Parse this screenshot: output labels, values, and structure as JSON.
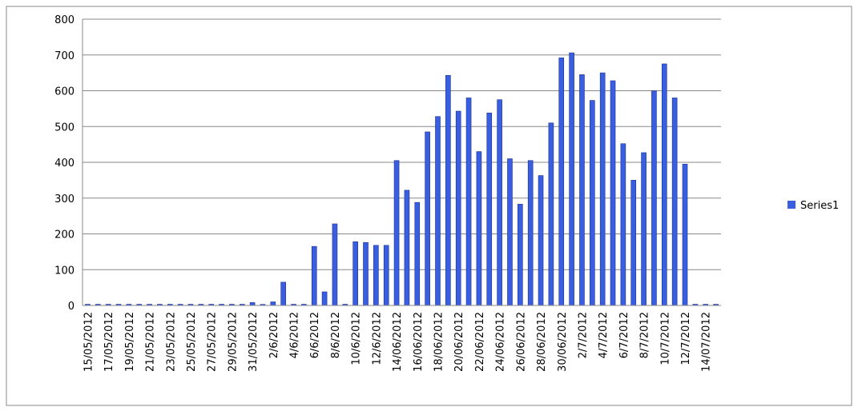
{
  "chart_data": {
    "type": "bar",
    "categories": [
      "15/05/2012",
      null,
      "17/05/2012",
      null,
      "19/05/2012",
      null,
      "21/05/2012",
      null,
      "23/05/2012",
      null,
      "25/05/2012",
      null,
      "27/05/2012",
      null,
      "29/05/2012",
      null,
      "31/05/2012",
      null,
      "2/6/2012",
      null,
      "4/6/2012",
      null,
      "6/6/2012",
      null,
      "8/6/2012",
      null,
      "10/6/2012",
      null,
      "12/6/2012",
      null,
      "14/06/2012",
      null,
      "16/06/2012",
      null,
      "18/06/2012",
      null,
      "20/06/2012",
      null,
      "22/06/2012",
      null,
      "24/06/2012",
      null,
      "26/06/2012",
      null,
      "28/06/2012",
      null,
      "30/06/2012",
      null,
      "2/7/2012",
      null,
      "4/7/2012",
      null,
      "6/7/2012",
      null,
      "8/7/2012",
      null,
      "10/7/2012",
      null,
      "12/7/2012",
      null,
      "14/07/2012",
      null
    ],
    "series": [
      {
        "name": "Series1",
        "color": "#3a5ee0",
        "values": [
          0,
          0,
          0,
          0,
          0,
          0,
          0,
          0,
          0,
          0,
          0,
          0,
          0,
          0,
          0,
          0,
          8,
          3,
          10,
          65,
          0,
          0,
          165,
          38,
          228,
          0,
          178,
          176,
          168,
          168,
          405,
          322,
          288,
          485,
          528,
          643,
          543,
          580,
          430,
          538,
          575,
          410,
          283,
          405,
          363,
          510,
          692,
          706,
          645,
          573,
          650,
          628,
          452,
          350,
          427,
          600,
          675,
          580,
          395,
          0,
          0,
          0
        ]
      }
    ],
    "ylim": [
      0,
      800
    ],
    "yticks": [
      0,
      100,
      200,
      300,
      400,
      500,
      600,
      700,
      800
    ],
    "grid": true,
    "legend": "right"
  }
}
